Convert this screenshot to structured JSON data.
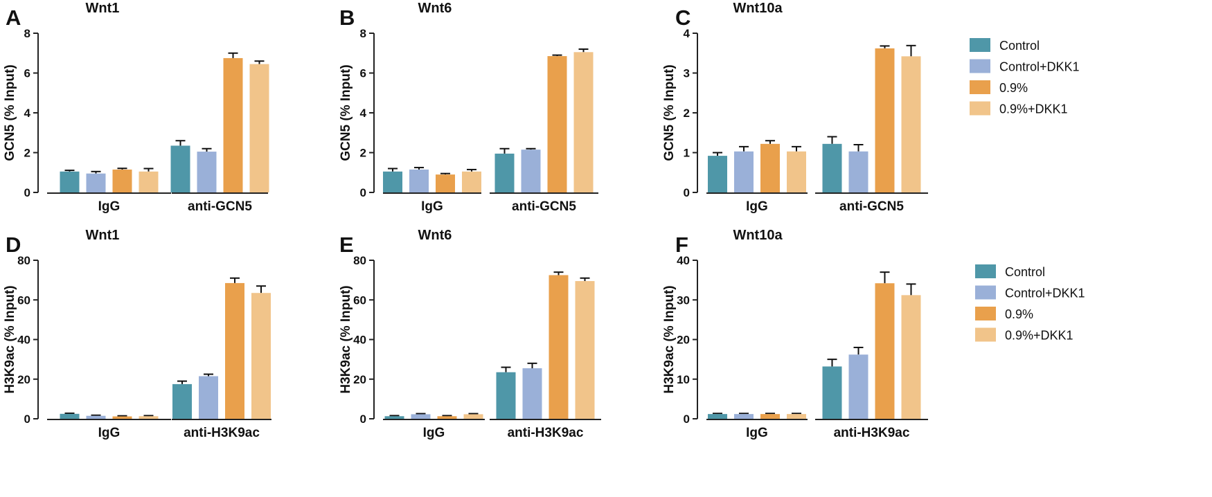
{
  "legend_labels": [
    "Control",
    "Control+DKK1",
    "0.9%",
    "0.9%+DKK1"
  ],
  "colors": [
    "#4f97a8",
    "#9ab0d8",
    "#e9a04c",
    "#f1c48a"
  ],
  "chart_data": [
    {
      "panel": "A",
      "type": "bar",
      "title": "Wnt1",
      "ylabel": "GCN5 (% Input)",
      "ylim": [
        0,
        8
      ],
      "yticks": [
        "0",
        "2",
        "4",
        "6",
        "8"
      ],
      "categories": [
        "IgG",
        "anti-GCN5"
      ],
      "series": [
        {
          "name": "Control",
          "values": [
            1.05,
            2.35
          ],
          "errors": [
            0.06,
            0.25
          ]
        },
        {
          "name": "Control+DKK1",
          "values": [
            0.95,
            2.05
          ],
          "errors": [
            0.1,
            0.15
          ]
        },
        {
          "name": "0.9%",
          "values": [
            1.15,
            6.75
          ],
          "errors": [
            0.06,
            0.25
          ]
        },
        {
          "name": "0.9%+DKK1",
          "values": [
            1.05,
            6.45
          ],
          "errors": [
            0.15,
            0.15
          ]
        }
      ]
    },
    {
      "panel": "B",
      "type": "bar",
      "title": "Wnt6",
      "ylabel": "GCN5 (% Input)",
      "ylim": [
        0,
        8
      ],
      "yticks": [
        "0",
        "2",
        "4",
        "6",
        "8"
      ],
      "categories": [
        "IgG",
        "anti-GCN5"
      ],
      "series": [
        {
          "name": "Control",
          "values": [
            1.05,
            1.95
          ],
          "errors": [
            0.15,
            0.25
          ]
        },
        {
          "name": "Control+DKK1",
          "values": [
            1.15,
            2.15
          ],
          "errors": [
            0.1,
            0.05
          ]
        },
        {
          "name": "0.9%",
          "values": [
            0.9,
            6.85
          ],
          "errors": [
            0.05,
            0.05
          ]
        },
        {
          "name": "0.9%+DKK1",
          "values": [
            1.05,
            7.05
          ],
          "errors": [
            0.1,
            0.15
          ]
        }
      ]
    },
    {
      "panel": "C",
      "type": "bar",
      "title": "Wnt10a",
      "ylabel": "GCN5 (% Input)",
      "ylim": [
        0,
        4
      ],
      "yticks": [
        "0",
        "1",
        "2",
        "3",
        "4"
      ],
      "categories": [
        "IgG",
        "anti-GCN5"
      ],
      "series": [
        {
          "name": "Control",
          "values": [
            0.92,
            1.22
          ],
          "errors": [
            0.08,
            0.18
          ]
        },
        {
          "name": "Control+DKK1",
          "values": [
            1.03,
            1.03
          ],
          "errors": [
            0.12,
            0.17
          ]
        },
        {
          "name": "0.9%",
          "values": [
            1.22,
            3.62
          ],
          "errors": [
            0.08,
            0.06
          ]
        },
        {
          "name": "0.9%+DKK1",
          "values": [
            1.03,
            3.42
          ],
          "errors": [
            0.12,
            0.27
          ]
        }
      ]
    },
    {
      "panel": "D",
      "type": "bar",
      "title": "Wnt1",
      "ylabel": "H3K9ac (% Input)",
      "ylim": [
        0,
        80
      ],
      "yticks": [
        "0",
        "20",
        "40",
        "60",
        "80"
      ],
      "categories": [
        "IgG",
        "anti-H3K9ac"
      ],
      "series": [
        {
          "name": "Control",
          "values": [
            2.5,
            17.5
          ],
          "errors": [
            0.3,
            1.5
          ]
        },
        {
          "name": "Control+DKK1",
          "values": [
            1.5,
            21.5
          ],
          "errors": [
            0.3,
            1.0
          ]
        },
        {
          "name": "0.9%",
          "values": [
            1.2,
            68.5
          ],
          "errors": [
            0.3,
            2.5
          ]
        },
        {
          "name": "0.9%+DKK1",
          "values": [
            1.3,
            63.5
          ],
          "errors": [
            0.3,
            3.5
          ]
        }
      ]
    },
    {
      "panel": "E",
      "type": "bar",
      "title": "Wnt6",
      "ylabel": "H3K9ac (% Input)",
      "ylim": [
        0,
        80
      ],
      "yticks": [
        "0",
        "20",
        "40",
        "60",
        "80"
      ],
      "categories": [
        "IgG",
        "anti-H3K9ac"
      ],
      "series": [
        {
          "name": "Control",
          "values": [
            1.3,
            23.5
          ],
          "errors": [
            0.3,
            2.5
          ]
        },
        {
          "name": "Control+DKK1",
          "values": [
            2.3,
            25.5
          ],
          "errors": [
            0.3,
            2.5
          ]
        },
        {
          "name": "0.9%",
          "values": [
            1.3,
            72.5
          ],
          "errors": [
            0.3,
            1.5
          ]
        },
        {
          "name": "0.9%+DKK1",
          "values": [
            2.3,
            69.5
          ],
          "errors": [
            0.3,
            1.5
          ]
        }
      ]
    },
    {
      "panel": "F",
      "type": "bar",
      "title": "Wnt10a",
      "ylabel": "H3K9ac (% Input)",
      "ylim": [
        0,
        40
      ],
      "yticks": [
        "0",
        "10",
        "20",
        "30",
        "40"
      ],
      "categories": [
        "IgG",
        "anti-H3K9ac"
      ],
      "series": [
        {
          "name": "Control",
          "values": [
            1.2,
            13.2
          ],
          "errors": [
            0.15,
            1.8
          ]
        },
        {
          "name": "Control+DKK1",
          "values": [
            1.2,
            16.2
          ],
          "errors": [
            0.15,
            1.8
          ]
        },
        {
          "name": "0.9%",
          "values": [
            1.2,
            34.2
          ],
          "errors": [
            0.15,
            2.8
          ]
        },
        {
          "name": "0.9%+DKK1",
          "values": [
            1.2,
            31.2
          ],
          "errors": [
            0.15,
            2.8
          ]
        }
      ]
    }
  ]
}
